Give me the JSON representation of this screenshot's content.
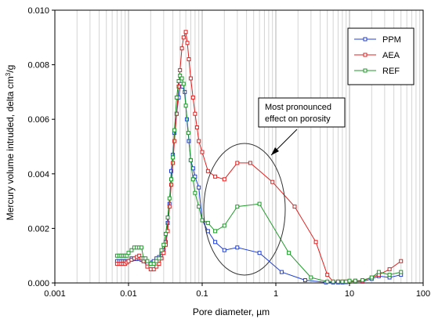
{
  "chart_data": {
    "type": "line",
    "title": "",
    "xlabel": "Pore diameter, µm",
    "ylabel_main": "Mercury volume intruded, delta cm",
    "ylabel_sup": "3",
    "ylabel_end": "/g",
    "xscale": "log",
    "xlim": [
      0.001,
      100
    ],
    "ylim": [
      0,
      0.01
    ],
    "xticks": [
      0.001,
      0.01,
      0.1,
      1,
      10,
      100
    ],
    "xtick_labels": [
      "0.001",
      "0.01",
      "0.1",
      "1",
      "10",
      "100"
    ],
    "yticks": [
      0,
      0.002,
      0.004,
      0.006,
      0.008,
      0.01
    ],
    "ytick_labels": [
      "0.000",
      "0.002",
      "0.004",
      "0.006",
      "0.008",
      "0.010"
    ],
    "grid": "vertical minor gridlines",
    "legend_position": "top-right",
    "annotation": "Most pronounced effect on porosity",
    "series": [
      {
        "name": "PPM",
        "color": "#1f3fd6",
        "marker": "square",
        "x": [
          0.007,
          0.0075,
          0.008,
          0.0085,
          0.009,
          0.0095,
          0.01,
          0.011,
          0.012,
          0.013,
          0.014,
          0.015,
          0.016,
          0.018,
          0.02,
          0.021,
          0.022,
          0.024,
          0.026,
          0.028,
          0.03,
          0.032,
          0.034,
          0.036,
          0.038,
          0.04,
          0.042,
          0.045,
          0.048,
          0.051,
          0.054,
          0.058,
          0.062,
          0.066,
          0.07,
          0.075,
          0.08,
          0.09,
          0.1,
          0.12,
          0.15,
          0.2,
          0.3,
          0.6,
          1.2,
          2.5,
          4.8,
          6.0,
          7.0,
          8.0,
          9.0,
          10,
          12,
          15,
          20,
          25,
          35,
          50
        ],
        "y": [
          0.0008,
          0.0008,
          0.0008,
          0.0008,
          0.0008,
          0.0008,
          0.0008,
          0.0009,
          0.00088,
          0.00088,
          0.0009,
          0.00085,
          0.0008,
          0.0007,
          0.0007,
          0.00075,
          0.0008,
          0.0009,
          0.00095,
          0.0011,
          0.0012,
          0.0015,
          0.0022,
          0.0029,
          0.0041,
          0.0047,
          0.0055,
          0.0062,
          0.0068,
          0.0073,
          0.0072,
          0.007,
          0.006,
          0.0052,
          0.0045,
          0.0042,
          0.0039,
          0.0035,
          0.0023,
          0.0019,
          0.0015,
          0.0012,
          0.0013,
          0.0011,
          0.0004,
          0.0001,
          2e-05,
          2e-05,
          2e-05,
          2e-05,
          3e-05,
          5e-05,
          5e-05,
          5e-05,
          0.00015,
          0.00025,
          0.0002,
          0.0003
        ]
      },
      {
        "name": "AEA",
        "color": "#e02020",
        "marker": "square",
        "x": [
          0.007,
          0.0075,
          0.008,
          0.0085,
          0.009,
          0.0095,
          0.01,
          0.011,
          0.012,
          0.013,
          0.014,
          0.015,
          0.016,
          0.018,
          0.02,
          0.022,
          0.024,
          0.026,
          0.028,
          0.03,
          0.032,
          0.034,
          0.036,
          0.038,
          0.04,
          0.042,
          0.045,
          0.048,
          0.05,
          0.053,
          0.056,
          0.06,
          0.063,
          0.066,
          0.07,
          0.075,
          0.08,
          0.085,
          0.09,
          0.1,
          0.12,
          0.15,
          0.2,
          0.3,
          0.45,
          0.9,
          1.8,
          3.5,
          5.0,
          6.0,
          7.0,
          8.0,
          9.0,
          10,
          12,
          15,
          20,
          25,
          35,
          50
        ],
        "y": [
          0.0007,
          0.0007,
          0.0007,
          0.0007,
          0.0007,
          0.00075,
          0.0008,
          0.00085,
          0.0009,
          0.00095,
          0.001,
          0.0009,
          0.0008,
          0.0006,
          0.0005,
          0.0005,
          0.0006,
          0.0007,
          0.0009,
          0.0011,
          0.0014,
          0.0019,
          0.0028,
          0.0036,
          0.0044,
          0.0052,
          0.0062,
          0.0072,
          0.0078,
          0.0086,
          0.009,
          0.0092,
          0.0088,
          0.0082,
          0.0075,
          0.0068,
          0.0062,
          0.0057,
          0.0052,
          0.0048,
          0.0041,
          0.0039,
          0.0038,
          0.0044,
          0.0044,
          0.0037,
          0.0028,
          0.0015,
          0.0003,
          5e-05,
          5e-05,
          5e-05,
          5e-05,
          5e-05,
          8e-05,
          8e-05,
          0.0002,
          0.0003,
          0.0005,
          0.0008
        ]
      },
      {
        "name": "REF",
        "color": "#1f9a2a",
        "marker": "square",
        "x": [
          0.007,
          0.0075,
          0.008,
          0.0085,
          0.009,
          0.0095,
          0.01,
          0.011,
          0.012,
          0.013,
          0.014,
          0.015,
          0.016,
          0.017,
          0.018,
          0.02,
          0.022,
          0.024,
          0.026,
          0.028,
          0.03,
          0.032,
          0.034,
          0.036,
          0.038,
          0.04,
          0.042,
          0.045,
          0.048,
          0.05,
          0.053,
          0.056,
          0.06,
          0.065,
          0.07,
          0.075,
          0.08,
          0.09,
          0.1,
          0.12,
          0.15,
          0.2,
          0.3,
          0.6,
          1.5,
          3.0,
          5.0,
          6.0,
          7.0,
          8.0,
          9.0,
          10,
          12,
          15,
          20,
          25,
          35,
          50
        ],
        "y": [
          0.001,
          0.001,
          0.001,
          0.001,
          0.001,
          0.001,
          0.0011,
          0.0012,
          0.0013,
          0.0013,
          0.0013,
          0.0013,
          0.0009,
          0.0009,
          0.0008,
          0.0007,
          0.0007,
          0.0008,
          0.0009,
          0.0012,
          0.0014,
          0.0018,
          0.0024,
          0.0031,
          0.0038,
          0.0046,
          0.0056,
          0.0068,
          0.0074,
          0.0076,
          0.0075,
          0.0073,
          0.0065,
          0.0055,
          0.0045,
          0.0038,
          0.0033,
          0.0028,
          0.0023,
          0.0022,
          0.0019,
          0.0021,
          0.0028,
          0.0029,
          0.0011,
          0.0002,
          5e-05,
          5e-05,
          5e-05,
          5e-05,
          5e-05,
          8e-05,
          8e-05,
          0.0001,
          0.0002,
          0.0004,
          0.0003,
          0.0004
        ]
      }
    ]
  }
}
